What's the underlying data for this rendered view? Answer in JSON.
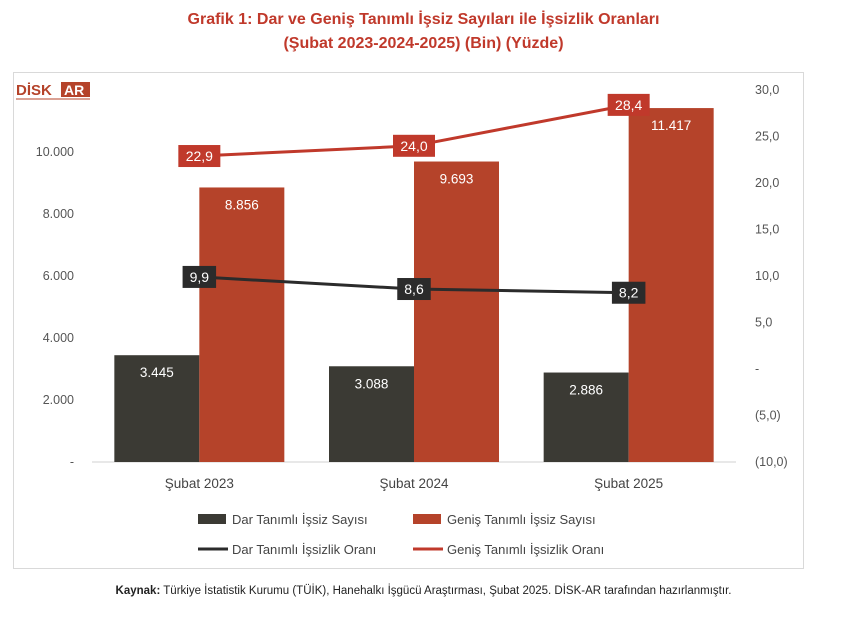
{
  "title": {
    "line1": "Grafik 1: Dar ve Geniş Tanımlı İşsiz Sayıları ile İşsizlik Oranları",
    "line2": "(Şubat 2023-2024-2025) (Bin) (Yüzde)"
  },
  "logo": {
    "main_text": "DİSK",
    "accent_text": "AR"
  },
  "source": {
    "label": "Kaynak:",
    "text": " Türkiye İstatistik Kurumu (TÜİK), Hanehalkı İşgücü Araştırması, Şubat 2025. DİSK-AR tarafından hazırlanmıştır."
  },
  "chart_data": {
    "type": "bar",
    "categories": [
      "Şubat 2023",
      "Şubat 2024",
      "Şubat 2025"
    ],
    "series": [
      {
        "name": "Dar Tanımlı İşsiz Sayısı",
        "type": "bar",
        "axis": "left",
        "color": "#3b3a34",
        "values": [
          3445,
          3088,
          2886
        ],
        "labels": [
          "3.445",
          "3.088",
          "2.886"
        ]
      },
      {
        "name": "Geniş Tanımlı İşsiz Sayısı",
        "type": "bar",
        "axis": "left",
        "color": "#b5432a",
        "values": [
          8856,
          9693,
          11417
        ],
        "labels": [
          "8.856",
          "9.693",
          "11.417"
        ]
      },
      {
        "name": "Dar Tanımlı İşsizlik Oranı",
        "type": "line",
        "axis": "right",
        "color": "#2b2b2b",
        "values": [
          9.9,
          8.6,
          8.2
        ],
        "labels": [
          "9,9",
          "8,6",
          "8,2"
        ]
      },
      {
        "name": "Geniş Tanımlı İşsizlik Oranı",
        "type": "line",
        "axis": "right",
        "color": "#c0392b",
        "values": [
          22.9,
          24.0,
          28.4
        ],
        "labels": [
          "22,9",
          "24,0",
          "28,4"
        ]
      }
    ],
    "y_left": {
      "min": 0,
      "max": 12000,
      "ticks": [
        0,
        2000,
        4000,
        6000,
        8000,
        10000
      ],
      "tick_labels": [
        "-",
        "2.000",
        "4.000",
        "6.000",
        "8.000",
        "10.000"
      ]
    },
    "y_right": {
      "min": -10,
      "max": 30,
      "ticks": [
        -10,
        -5,
        0,
        5,
        10,
        15,
        20,
        25,
        30
      ],
      "tick_labels": [
        "(10,0)",
        "(5,0)",
        "-",
        "5,0",
        "10,0",
        "15,0",
        "20,0",
        "25,0",
        "30,0"
      ]
    },
    "grid": false,
    "legend_position": "bottom"
  }
}
